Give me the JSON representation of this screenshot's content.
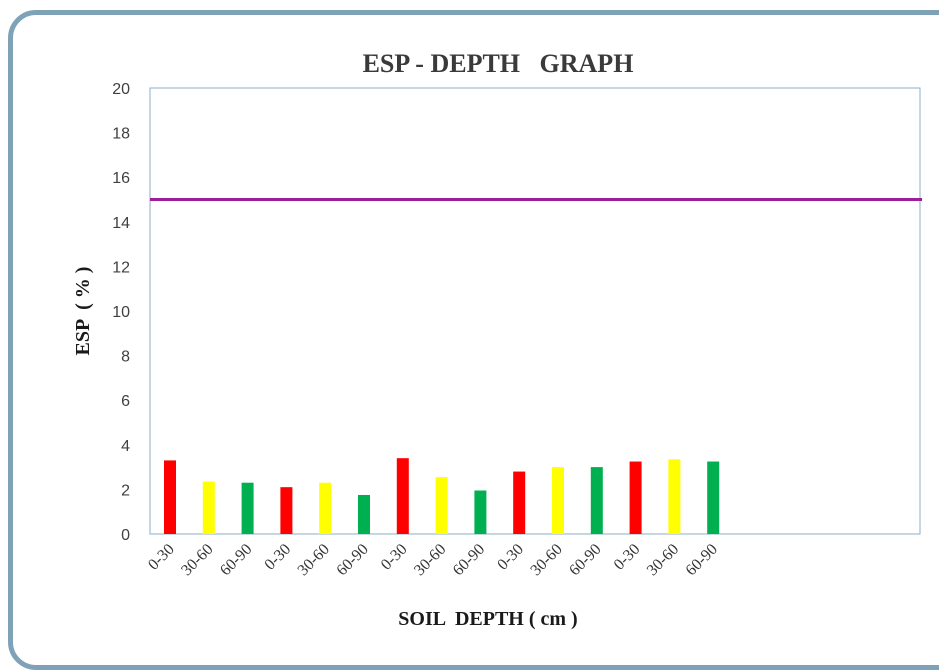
{
  "chart_data": {
    "type": "bar",
    "title": "ESP - DEPTH   GRAPH",
    "xlabel": "SOIL  DEPTH ( cm )",
    "ylabel": "ESP  ( % )",
    "ylim": [
      0,
      20
    ],
    "yticks": [
      "0",
      "2",
      "4",
      "6",
      "8",
      "10",
      "12",
      "14",
      "16",
      "18",
      "20"
    ],
    "categories": [
      "0-30",
      "30-60",
      "60-90",
      "0-30",
      "30-60",
      "60-90",
      "0-30",
      "30-60",
      "60-90",
      "0-30",
      "30-60",
      "60-90",
      "0-30",
      "30-60",
      "60-90"
    ],
    "values": [
      3.3,
      2.35,
      2.3,
      2.1,
      2.3,
      1.75,
      3.4,
      2.55,
      1.95,
      2.8,
      3.0,
      3.0,
      3.25,
      3.35,
      3.25
    ],
    "bar_colors": [
      "#ff0000",
      "#ffff00",
      "#00b050",
      "#ff0000",
      "#ffff00",
      "#00b050",
      "#ff0000",
      "#ffff00",
      "#00b050",
      "#ff0000",
      "#ffff00",
      "#00b050",
      "#ff0000",
      "#ffff00",
      "#00b050"
    ],
    "reference_line": {
      "value": 15,
      "color": "#9b1f9b"
    },
    "grid": false,
    "legend": "none"
  }
}
